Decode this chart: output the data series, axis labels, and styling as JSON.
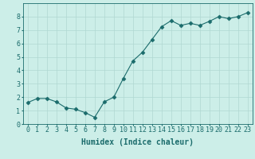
{
  "x": [
    0,
    1,
    2,
    3,
    4,
    5,
    6,
    7,
    8,
    9,
    10,
    11,
    12,
    13,
    14,
    15,
    16,
    17,
    18,
    19,
    20,
    21,
    22,
    23
  ],
  "y": [
    1.6,
    1.9,
    1.9,
    1.65,
    1.2,
    1.1,
    0.85,
    0.5,
    1.65,
    2.0,
    3.4,
    4.7,
    5.35,
    6.3,
    7.25,
    7.7,
    7.35,
    7.5,
    7.35,
    7.65,
    8.0,
    7.85,
    8.0,
    8.3
  ],
  "line_color": "#1a6b6b",
  "marker": "D",
  "marker_size": 2.5,
  "bg_color": "#cceee8",
  "grid_color": "#b0d8d2",
  "xlabel": "Humidex (Indice chaleur)",
  "xlabel_fontsize": 7,
  "tick_fontsize": 6,
  "xlim": [
    -0.5,
    23.5
  ],
  "ylim": [
    0,
    9
  ],
  "yticks": [
    0,
    1,
    2,
    3,
    4,
    5,
    6,
    7,
    8
  ],
  "xticks": [
    0,
    1,
    2,
    3,
    4,
    5,
    6,
    7,
    8,
    9,
    10,
    11,
    12,
    13,
    14,
    15,
    16,
    17,
    18,
    19,
    20,
    21,
    22,
    23
  ]
}
